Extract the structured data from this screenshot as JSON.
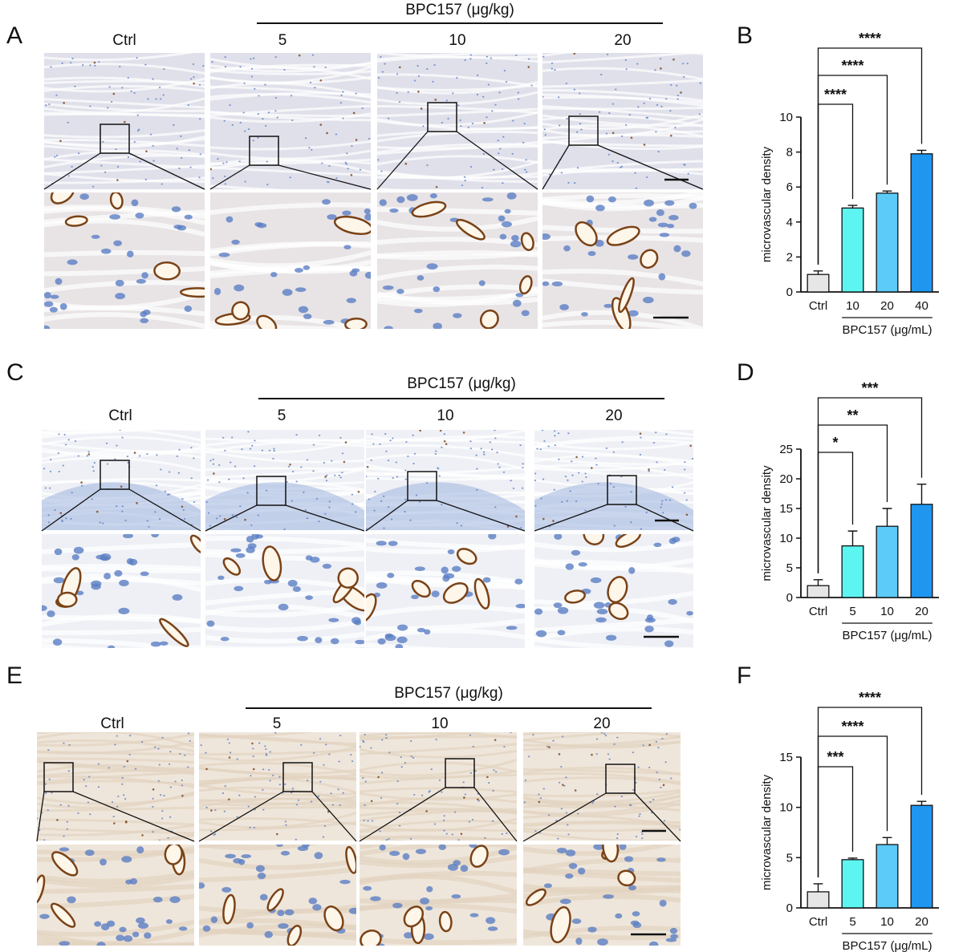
{
  "panels": [
    {
      "letter": "A",
      "header": "BPC157 (μg/kg)",
      "groups": [
        "Ctrl",
        "5",
        "10",
        "20"
      ],
      "stain": "muscle"
    },
    {
      "letter": "C",
      "header": "BPC157 (μg/kg)",
      "groups": [
        "Ctrl",
        "5",
        "10",
        "20"
      ],
      "stain": "skin"
    },
    {
      "letter": "E",
      "header": "BPC157 (μg/kg)",
      "groups": [
        "Ctrl",
        "5",
        "10",
        "20"
      ],
      "stain": "tissue"
    }
  ],
  "colors": {
    "ctrl": "#e6e6e6",
    "c1": "#5cf5f2",
    "c2": "#5ccbfa",
    "c3": "#1f96f0",
    "tissue_bg": "#f3efe9",
    "nuclei": "#5b7ec4",
    "vessel": "#7a4216"
  },
  "chart_data": [
    {
      "letter": "B",
      "type": "bar",
      "categories": [
        "Ctrl",
        "10",
        "20",
        "40"
      ],
      "values": [
        1.0,
        4.8,
        5.65,
        7.9
      ],
      "errors": [
        0.2,
        0.15,
        0.12,
        0.2
      ],
      "ylabel": "microvascular density",
      "xgroup_label": "BPC157 (μg/mL)",
      "ylim": [
        0,
        10
      ],
      "yticks": [
        0,
        2,
        4,
        6,
        8,
        10
      ],
      "significance": [
        "****",
        "****",
        "****"
      ]
    },
    {
      "letter": "D",
      "type": "bar",
      "categories": [
        "Ctrl",
        "5",
        "10",
        "20"
      ],
      "values": [
        2.0,
        8.7,
        12.0,
        15.7
      ],
      "errors": [
        1.0,
        2.5,
        3.0,
        3.4
      ],
      "ylabel": "microvascular density",
      "xgroup_label": "BPC157 (μg/mL)",
      "ylim": [
        0,
        25
      ],
      "yticks": [
        0,
        5,
        10,
        15,
        20,
        25
      ],
      "significance": [
        "*",
        "**",
        "***"
      ]
    },
    {
      "letter": "F",
      "type": "bar",
      "categories": [
        "Ctrl",
        "5",
        "10",
        "20"
      ],
      "values": [
        1.6,
        4.8,
        6.3,
        10.2
      ],
      "errors": [
        0.8,
        0.15,
        0.7,
        0.4
      ],
      "ylabel": "microvascular density",
      "xgroup_label": "BPC157 (μg/mL)",
      "ylim": [
        0,
        15
      ],
      "yticks": [
        0,
        5,
        10,
        15
      ],
      "significance": [
        "***",
        "****",
        "****"
      ]
    }
  ]
}
